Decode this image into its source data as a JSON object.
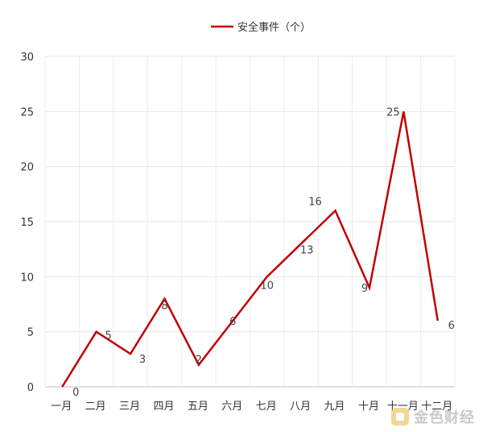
{
  "chart_data": {
    "type": "line",
    "categories": [
      "一月",
      "二月",
      "三月",
      "四月",
      "五月",
      "六月",
      "七月",
      "八月",
      "九月",
      "十月",
      "十一月",
      "十二月"
    ],
    "series": [
      {
        "name": "安全事件（个）",
        "color": "#c00000",
        "values": [
          0,
          5,
          3,
          8,
          2,
          6,
          10,
          13,
          16,
          9,
          25,
          6
        ]
      }
    ],
    "yticks": [
      0,
      5,
      10,
      15,
      20,
      25,
      30
    ],
    "ylim": [
      0,
      30
    ],
    "grid": true,
    "legend_position": "top-center",
    "data_labels": true
  },
  "watermark": {
    "text": "金色财经"
  }
}
